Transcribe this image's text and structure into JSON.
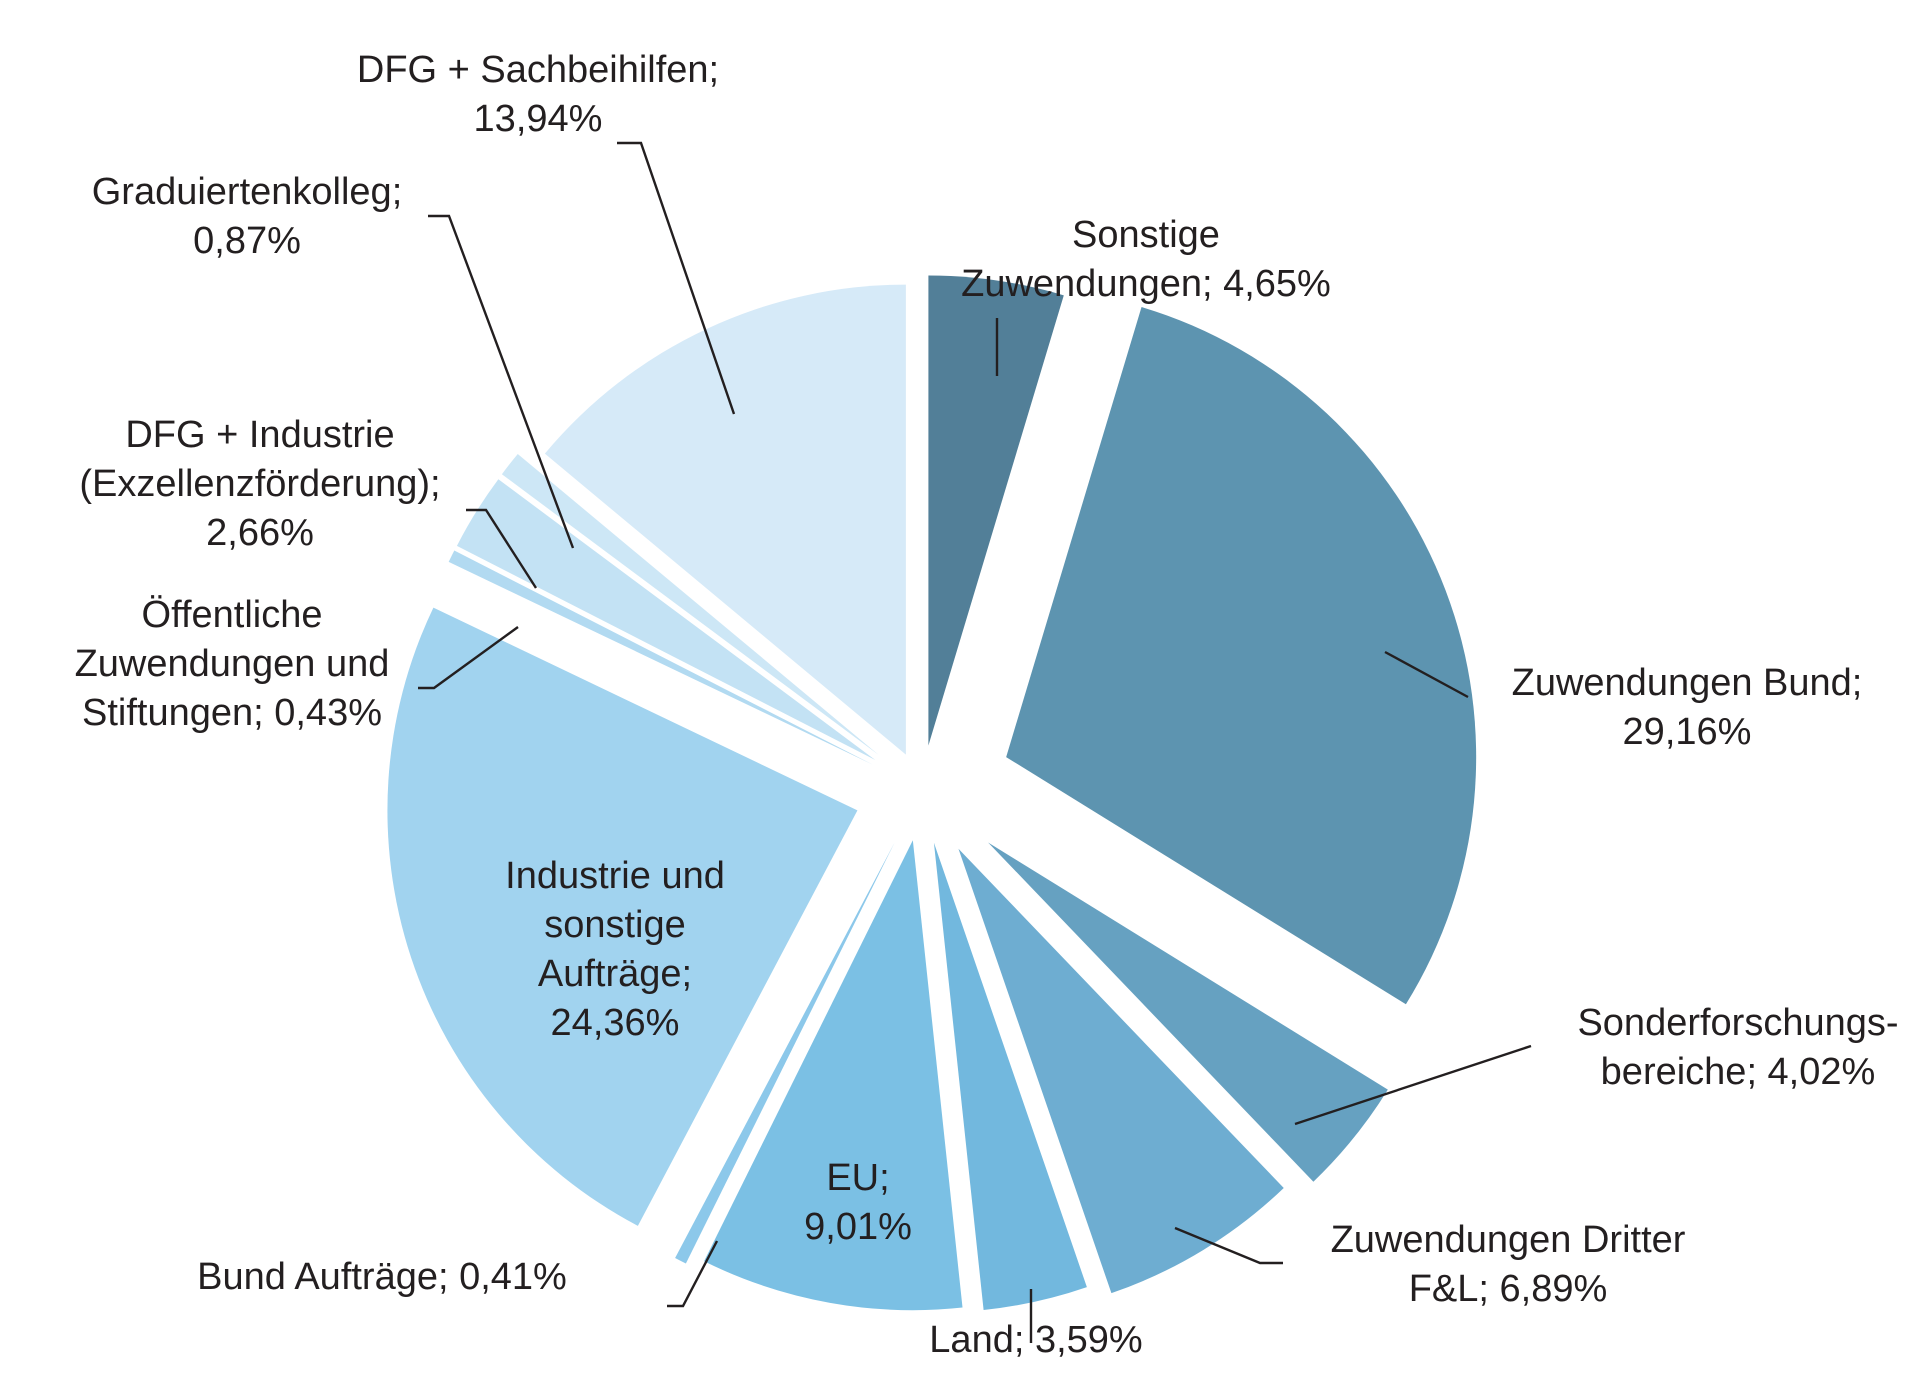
{
  "chart_data": {
    "type": "pie",
    "title": "",
    "slices": [
      {
        "key": "sonstige",
        "lines": [
          "Sonstige",
          "Zuwendungen; 4,65%"
        ],
        "value": 4.65,
        "color": "#527f98"
      },
      {
        "key": "bund",
        "lines": [
          "Zuwendungen Bund;",
          "29,16%"
        ],
        "value": 29.16,
        "color": "#5d94b0"
      },
      {
        "key": "sfb",
        "lines": [
          "Sonderforschungs-",
          "bereiche;  4,02%"
        ],
        "value": 4.02,
        "color": "#66a1c1"
      },
      {
        "key": "dritter",
        "lines": [
          "Zuwendungen Dritter",
          "F&L; 6,89%"
        ],
        "value": 6.89,
        "color": "#6eadd1"
      },
      {
        "key": "land",
        "lines": [
          "Land; 3,59%"
        ],
        "value": 3.59,
        "color": "#72b8de"
      },
      {
        "key": "eu",
        "lines": [
          "EU;",
          "9,01%"
        ],
        "value": 9.01,
        "color": "#7bc0e4"
      },
      {
        "key": "bund-auftraege",
        "lines": [
          "Bund Aufträge; 0,41%"
        ],
        "value": 0.41,
        "color": "#8cc8ea"
      },
      {
        "key": "industrie",
        "lines": [
          "Industrie und",
          "sonstige",
          "Aufträge;",
          "24,36%"
        ],
        "value": 24.36,
        "color": "#a1d3ef"
      },
      {
        "key": "oeffentliche",
        "lines": [
          "Öffentliche",
          "Zuwendungen und",
          "Stiftungen; 0,43%"
        ],
        "value": 0.43,
        "color": "#b2daf1"
      },
      {
        "key": "exzellenz",
        "lines": [
          "DFG + Industrie",
          "(Exzellenzförderung);",
          "2,66%"
        ],
        "value": 2.66,
        "color": "#c3e2f4"
      },
      {
        "key": "graduiertenkolleg",
        "lines": [
          "Graduiertenkolleg;",
          "0,87%"
        ],
        "value": 0.87,
        "color": "#cde7f6"
      },
      {
        "key": "dfg-sach",
        "lines": [
          "DFG + Sachbeihilfen;",
          "13,94%"
        ],
        "value": 13.94,
        "color": "#d6eaf8"
      }
    ]
  }
}
